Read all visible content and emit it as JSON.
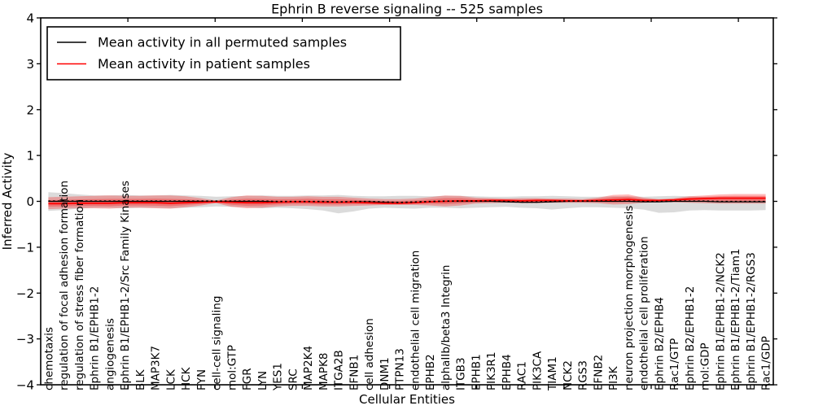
{
  "chart_data": {
    "type": "line",
    "title": "Ephrin B reverse signaling -- 525 samples",
    "xlabel": "Cellular Entities",
    "ylabel": "Inferred Activity",
    "ylim": [
      -4,
      4
    ],
    "yticks": [
      4,
      3,
      2,
      1,
      0,
      -1,
      -2,
      -3,
      -4
    ],
    "grid": false,
    "legend_position": "upper left",
    "legend": [
      {
        "label": "Mean activity in all permuted samples",
        "color": "#000000"
      },
      {
        "label": "Mean activity in patient samples",
        "color": "#ff0000"
      }
    ],
    "categories": [
      "chemotaxis",
      "regulation of focal adhesion formation",
      "regulation of stress fiber formation",
      "Ephrin B1/EPHB1-2",
      "angiogenesis",
      "Ephrin B1/EPHB1-2/Src Family Kinases",
      "BLK",
      "MAP3K7",
      "LCK",
      "HCK",
      "FYN",
      "cell-cell signaling",
      "mol:GTP",
      "FGR",
      "LYN",
      "YES1",
      "SRC",
      "MAP2K4",
      "MAPK8",
      "ITGA2B",
      "EFNB1",
      "cell adhesion",
      "DNM1",
      "PTPN13",
      "endothelial cell migration",
      "EPHB2",
      "alphaIIb/beta3 Integrin",
      "ITGB3",
      "EPHB1",
      "PIK3R1",
      "EPHB4",
      "RAC1",
      "PIK3CA",
      "TIAM1",
      "NCK2",
      "RGS3",
      "EFNB2",
      "PI3K",
      "neuron projection morphogenesis",
      "endothelial cell proliferation",
      "Ephrin B2/EPHB4",
      "Rac1/GTP",
      "Ephrin B2/EPHB1-2",
      "mol:GDP",
      "Ephrin B1/EPHB1-2/NCK2",
      "Ephrin B1/EPHB1-2/Tiam1",
      "Ephrin B1/EPHB1-2/RGS3",
      "Rac1/GDP"
    ],
    "series": [
      {
        "name": "Mean activity in all permuted samples",
        "color": "#000000",
        "style": "solid-with-dashes",
        "values": [
          0,
          0,
          0,
          0,
          0,
          0,
          0,
          0,
          0,
          0,
          0,
          0,
          0,
          0,
          0,
          -0.01,
          -0.01,
          -0.01,
          -0.01,
          -0.02,
          -0.01,
          -0.01,
          -0.02,
          -0.03,
          -0.02,
          -0.01,
          0,
          0,
          0,
          0,
          -0.01,
          -0.02,
          -0.02,
          -0.01,
          0,
          0,
          0,
          0,
          0,
          -0.01,
          -0.01,
          0,
          0,
          0,
          -0.01,
          -0.01,
          -0.01,
          -0.01
        ]
      },
      {
        "name": "Mean activity in patient samples",
        "color": "#ff0000",
        "style": "solid",
        "values": [
          -0.05,
          -0.05,
          -0.04,
          -0.04,
          -0.04,
          -0.03,
          -0.03,
          -0.03,
          -0.04,
          -0.03,
          -0.02,
          -0.01,
          -0.02,
          -0.03,
          -0.03,
          -0.02,
          -0.01,
          -0.01,
          -0.02,
          -0.02,
          -0.02,
          -0.03,
          -0.04,
          -0.04,
          -0.03,
          -0.01,
          0,
          0.01,
          0.01,
          0.02,
          0.02,
          0.01,
          0.02,
          0.02,
          0.01,
          0.01,
          0.02,
          0.03,
          0.04,
          0.02,
          0.02,
          0.03,
          0.05,
          0.06,
          0.07,
          0.07,
          0.07,
          0.07
        ]
      }
    ],
    "bands": [
      {
        "name": "permuted samples spread",
        "color": "#999999",
        "upper": [
          0.2,
          0.18,
          0.15,
          0.13,
          0.13,
          0.14,
          0.13,
          0.13,
          0.14,
          0.13,
          0.12,
          0.1,
          0.11,
          0.12,
          0.13,
          0.12,
          0.12,
          0.13,
          0.13,
          0.14,
          0.12,
          0.11,
          0.11,
          0.12,
          0.12,
          0.11,
          0.12,
          0.12,
          0.11,
          0.1,
          0.1,
          0.11,
          0.11,
          0.12,
          0.11,
          0.1,
          0.1,
          0.11,
          0.11,
          0.1,
          0.11,
          0.12,
          0.11,
          0.1,
          0.1,
          0.1,
          0.1,
          0.1
        ],
        "lower": [
          -0.21,
          -0.19,
          -0.16,
          -0.14,
          -0.14,
          -0.15,
          -0.14,
          -0.14,
          -0.15,
          -0.14,
          -0.13,
          -0.11,
          -0.12,
          -0.13,
          -0.15,
          -0.14,
          -0.15,
          -0.17,
          -0.2,
          -0.26,
          -0.22,
          -0.16,
          -0.14,
          -0.15,
          -0.16,
          -0.14,
          -0.14,
          -0.15,
          -0.14,
          -0.13,
          -0.12,
          -0.14,
          -0.15,
          -0.18,
          -0.15,
          -0.13,
          -0.13,
          -0.14,
          -0.15,
          -0.18,
          -0.25,
          -0.24,
          -0.2,
          -0.19,
          -0.2,
          -0.2,
          -0.2,
          -0.19
        ]
      },
      {
        "name": "patient samples spread",
        "color": "#ff0000",
        "upper": [
          0.09,
          0.1,
          0.11,
          0.12,
          0.13,
          0.12,
          0.12,
          0.13,
          0.13,
          0.11,
          0.07,
          0.02,
          0.09,
          0.13,
          0.12,
          0.1,
          0.1,
          0.11,
          0.1,
          0.1,
          0.08,
          0.06,
          0.05,
          0.05,
          0.06,
          0.09,
          0.13,
          0.12,
          0.08,
          0.07,
          0.06,
          0.07,
          0.07,
          0.06,
          0.06,
          0.05,
          0.08,
          0.14,
          0.15,
          0.08,
          0.05,
          0.07,
          0.11,
          0.13,
          0.15,
          0.16,
          0.16,
          0.16
        ],
        "lower": [
          -0.17,
          -0.16,
          -0.15,
          -0.15,
          -0.16,
          -0.14,
          -0.14,
          -0.15,
          -0.16,
          -0.13,
          -0.09,
          -0.04,
          -0.12,
          -0.15,
          -0.14,
          -0.11,
          -0.1,
          -0.1,
          -0.11,
          -0.11,
          -0.1,
          -0.09,
          -0.08,
          -0.08,
          -0.08,
          -0.09,
          -0.11,
          -0.09,
          -0.05,
          -0.04,
          -0.03,
          -0.04,
          -0.04,
          -0.03,
          -0.03,
          -0.03,
          -0.04,
          -0.07,
          -0.06,
          -0.03,
          -0.02,
          -0.02,
          -0.03,
          -0.04,
          -0.05,
          -0.05,
          -0.05,
          -0.05
        ]
      }
    ]
  }
}
